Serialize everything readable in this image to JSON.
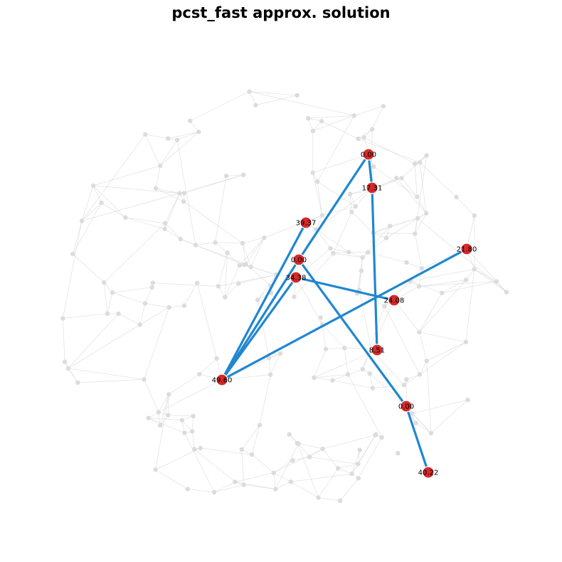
{
  "title": "pcst_fast approx. solution",
  "colors": {
    "background_edge": "#d9d9d9",
    "background_node": "#dcdcdc",
    "solution_edge": "#1f87d1",
    "solution_node": "#d62a2a"
  },
  "solution_nodes": [
    {
      "id": "a",
      "label": "0.00"
    },
    {
      "id": "b",
      "label": "17.31"
    },
    {
      "id": "c",
      "label": "39.37"
    },
    {
      "id": "d",
      "label": "0.00"
    },
    {
      "id": "e",
      "label": "21.80"
    },
    {
      "id": "f",
      "label": "34.38"
    },
    {
      "id": "g",
      "label": "24.08"
    },
    {
      "id": "h",
      "label": "8.51"
    },
    {
      "id": "i",
      "label": "49.60"
    },
    {
      "id": "j",
      "label": "0.00"
    },
    {
      "id": "k",
      "label": "40.22"
    }
  ],
  "solution_edges": [
    [
      "a",
      "b"
    ],
    [
      "a",
      "d"
    ],
    [
      "b",
      "h"
    ],
    [
      "d",
      "j"
    ],
    [
      "j",
      "k"
    ],
    [
      "c",
      "i"
    ],
    [
      "d",
      "i"
    ],
    [
      "f",
      "i"
    ],
    [
      "e",
      "i"
    ],
    [
      "f",
      "g"
    ]
  ]
}
